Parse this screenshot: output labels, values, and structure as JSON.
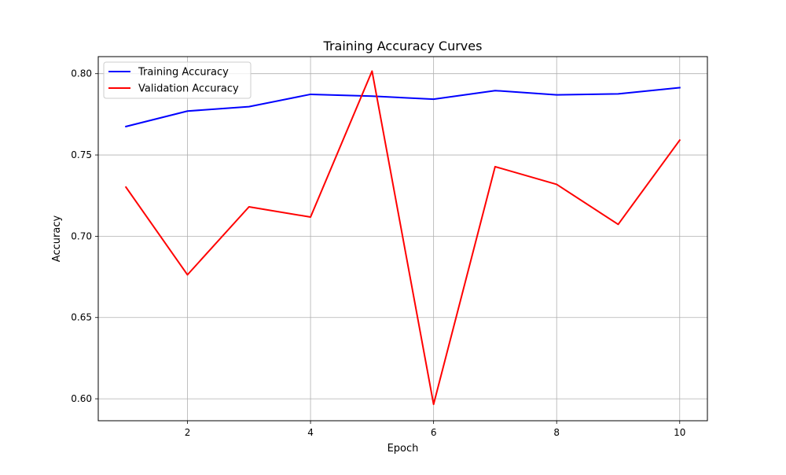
{
  "chart_data": {
    "type": "line",
    "title": "Training Accuracy Curves",
    "xlabel": "Epoch",
    "ylabel": "Accuracy",
    "x": [
      1,
      2,
      3,
      4,
      5,
      6,
      7,
      8,
      9,
      10
    ],
    "xlim": [
      0.55,
      10.45
    ],
    "ylim": [
      0.5865,
      0.8105
    ],
    "xticks": [
      2,
      4,
      6,
      8,
      10
    ],
    "xtick_labels": [
      "2",
      "4",
      "6",
      "8",
      "10"
    ],
    "yticks": [
      0.6,
      0.65,
      0.7,
      0.75,
      0.8
    ],
    "ytick_labels": [
      "0.60",
      "0.65",
      "0.70",
      "0.75",
      "0.80"
    ],
    "grid": true,
    "legend_position": "top-left",
    "series": [
      {
        "name": "Training Accuracy",
        "color": "#0000ff",
        "values": [
          0.7675,
          0.777,
          0.7797,
          0.7873,
          0.7862,
          0.7843,
          0.7896,
          0.787,
          0.7876,
          0.7914
        ]
      },
      {
        "name": "Validation Accuracy",
        "color": "#ff0000",
        "values": [
          0.7302,
          0.6763,
          0.7181,
          0.7118,
          0.8016,
          0.5966,
          0.7428,
          0.7319,
          0.7073,
          0.7591
        ]
      }
    ]
  }
}
